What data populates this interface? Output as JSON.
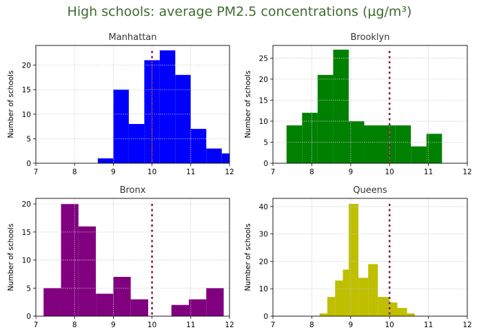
{
  "title": "High schools: average PM2.5 concentrations (µg/m³)",
  "colors": {
    "title": "#3d6b2f",
    "reference_line": "#8b1a4f"
  },
  "chart_data": [
    {
      "type": "bar",
      "subtitle": "Manhattan",
      "color": "#0000ff",
      "ylabel": "Number of schools",
      "xlim": [
        7,
        12
      ],
      "ylim": [
        0,
        24
      ],
      "xticks": [
        7,
        8,
        9,
        10,
        11,
        12
      ],
      "yticks": [
        0,
        5,
        10,
        15,
        20
      ],
      "reference_line_x": 10,
      "grid": true,
      "bins": [
        [
          8.6,
          9.0,
          1
        ],
        [
          9.0,
          9.4,
          15
        ],
        [
          9.4,
          9.8,
          8
        ],
        [
          9.8,
          10.2,
          21
        ],
        [
          10.2,
          10.6,
          23
        ],
        [
          10.6,
          11.0,
          18
        ],
        [
          11.0,
          11.4,
          7
        ],
        [
          11.4,
          11.8,
          3
        ],
        [
          11.8,
          12.0,
          2
        ]
      ]
    },
    {
      "type": "bar",
      "subtitle": "Brooklyn",
      "color": "#008000",
      "ylabel": "Number of schools",
      "xlim": [
        7,
        12
      ],
      "ylim": [
        0,
        28
      ],
      "xticks": [
        7,
        8,
        9,
        10,
        11,
        12
      ],
      "yticks": [
        0,
        5,
        10,
        15,
        20,
        25
      ],
      "reference_line_x": 10,
      "grid": true,
      "bins": [
        [
          7.35,
          7.75,
          9
        ],
        [
          7.75,
          8.15,
          12
        ],
        [
          8.15,
          8.55,
          21
        ],
        [
          8.55,
          8.95,
          27
        ],
        [
          8.95,
          9.35,
          10
        ],
        [
          9.35,
          10.15,
          9
        ],
        [
          10.15,
          10.55,
          9
        ],
        [
          10.55,
          10.95,
          4
        ],
        [
          10.95,
          11.35,
          7
        ]
      ]
    },
    {
      "type": "bar",
      "subtitle": "Bronx",
      "color": "#800080",
      "ylabel": "Number of schools",
      "xlim": [
        7,
        12
      ],
      "ylim": [
        0,
        21
      ],
      "xticks": [
        7,
        8,
        9,
        10,
        11,
        12
      ],
      "yticks": [
        0,
        5,
        10,
        15,
        20
      ],
      "reference_line_x": 10,
      "grid": true,
      "bins": [
        [
          7.2,
          7.65,
          5
        ],
        [
          7.65,
          8.1,
          20
        ],
        [
          8.1,
          8.55,
          16
        ],
        [
          8.55,
          9.0,
          4
        ],
        [
          9.0,
          9.45,
          7
        ],
        [
          9.45,
          9.9,
          3
        ],
        [
          10.5,
          10.95,
          2
        ],
        [
          10.95,
          11.4,
          3
        ],
        [
          11.4,
          11.85,
          5
        ]
      ]
    },
    {
      "type": "bar",
      "subtitle": "Queens",
      "color": "#bfbf00",
      "ylabel": "Number of schools",
      "xlim": [
        7,
        12
      ],
      "ylim": [
        0,
        43
      ],
      "xticks": [
        7,
        8,
        9,
        10,
        11,
        12
      ],
      "yticks": [
        0,
        10,
        20,
        30,
        40
      ],
      "reference_line_x": 10,
      "grid": true,
      "bins": [
        [
          8.2,
          8.4,
          1
        ],
        [
          8.4,
          8.6,
          7
        ],
        [
          8.6,
          8.8,
          13
        ],
        [
          8.8,
          8.95,
          17
        ],
        [
          8.95,
          9.2,
          41
        ],
        [
          9.2,
          9.45,
          14
        ],
        [
          9.45,
          9.7,
          19
        ],
        [
          9.7,
          10.0,
          7
        ],
        [
          10.0,
          10.2,
          5
        ],
        [
          10.2,
          10.45,
          3
        ],
        [
          10.45,
          10.65,
          1
        ]
      ]
    }
  ]
}
